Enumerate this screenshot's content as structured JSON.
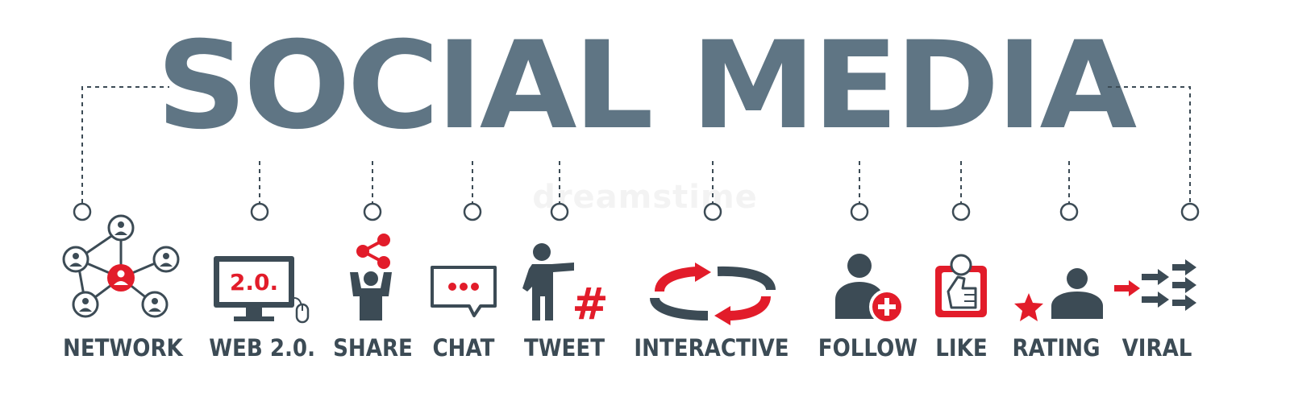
{
  "title": "SOCIAL MEDIA",
  "watermark": "dreamstime",
  "colors": {
    "slate": "#5f7584",
    "dark": "#3c4b55",
    "red": "#e21c2a"
  },
  "items": [
    {
      "label": "NETWORK",
      "icon": "network-icon"
    },
    {
      "label": "WEB 2.0.",
      "icon": "monitor-icon",
      "screen_text": "2.0."
    },
    {
      "label": "SHARE",
      "icon": "share-icon"
    },
    {
      "label": "CHAT",
      "icon": "chat-icon"
    },
    {
      "label": "TWEET",
      "icon": "hashtag-icon"
    },
    {
      "label": "INTERACTIVE",
      "icon": "cycle-arrows-icon"
    },
    {
      "label": "FOLLOW",
      "icon": "user-plus-icon"
    },
    {
      "label": "LIKE",
      "icon": "thumbs-up-icon"
    },
    {
      "label": "RATING",
      "icon": "star-user-icon"
    },
    {
      "label": "VIRAL",
      "icon": "viral-arrows-icon"
    }
  ]
}
